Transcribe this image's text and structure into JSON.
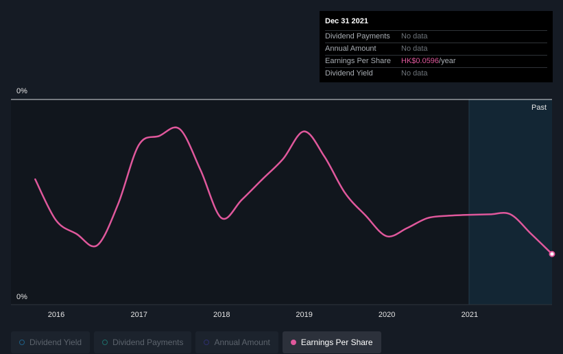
{
  "tooltip": {
    "date": "Dec 31 2021",
    "rows": [
      {
        "label": "Dividend Payments",
        "value": "No data",
        "unit": ""
      },
      {
        "label": "Annual Amount",
        "value": "No data",
        "unit": ""
      },
      {
        "label": "Earnings Per Share",
        "value": "HK$0.0596",
        "unit": "/year"
      },
      {
        "label": "Dividend Yield",
        "value": "No data",
        "unit": ""
      }
    ]
  },
  "legend": {
    "items": [
      {
        "label": "Dividend Yield",
        "color": "#1e5f86",
        "active": false
      },
      {
        "label": "Dividend Payments",
        "color": "#1d6e6a",
        "active": false
      },
      {
        "label": "Annual Amount",
        "color": "#2d2f6e",
        "active": false
      },
      {
        "label": "Earnings Per Share",
        "color": "#e0589c",
        "active": true
      }
    ]
  },
  "chart_data": {
    "type": "line",
    "title": "",
    "xlabel": "",
    "ylabel": "",
    "y_tick_labels": [
      "0%",
      "0%"
    ],
    "x_tick_labels": [
      "2016",
      "2017",
      "2018",
      "2019",
      "2020",
      "2021"
    ],
    "x_range": [
      "2015-06-15",
      "2021-12-31"
    ],
    "future_region_label": "Past",
    "future_region_start": "2021-01-01",
    "grid": false,
    "series": [
      {
        "color": "#e0589c",
        "x": [
          "2015-09-30",
          "2015-12-31",
          "2016-03-31",
          "2016-06-30",
          "2016-09-30",
          "2016-12-31",
          "2017-03-31",
          "2017-06-30",
          "2017-09-30",
          "2017-12-31",
          "2018-03-31",
          "2018-06-30",
          "2018-09-30",
          "2018-12-31",
          "2019-03-31",
          "2019-06-30",
          "2019-09-30",
          "2019-12-31",
          "2020-03-31",
          "2020-06-30",
          "2020-09-30",
          "2020-12-31",
          "2021-03-31",
          "2021-06-30",
          "2021-09-30",
          "2021-12-31"
        ],
        "values": [
          0.076,
          0.067,
          0.064,
          0.0615,
          0.0705,
          0.0835,
          0.0855,
          0.087,
          0.078,
          0.0675,
          0.0715,
          0.076,
          0.0805,
          0.0865,
          0.081,
          0.073,
          0.068,
          0.0635,
          0.0653,
          0.0675,
          0.068,
          0.0682,
          0.0683,
          0.0683,
          0.064,
          0.0596
        ]
      }
    ]
  }
}
